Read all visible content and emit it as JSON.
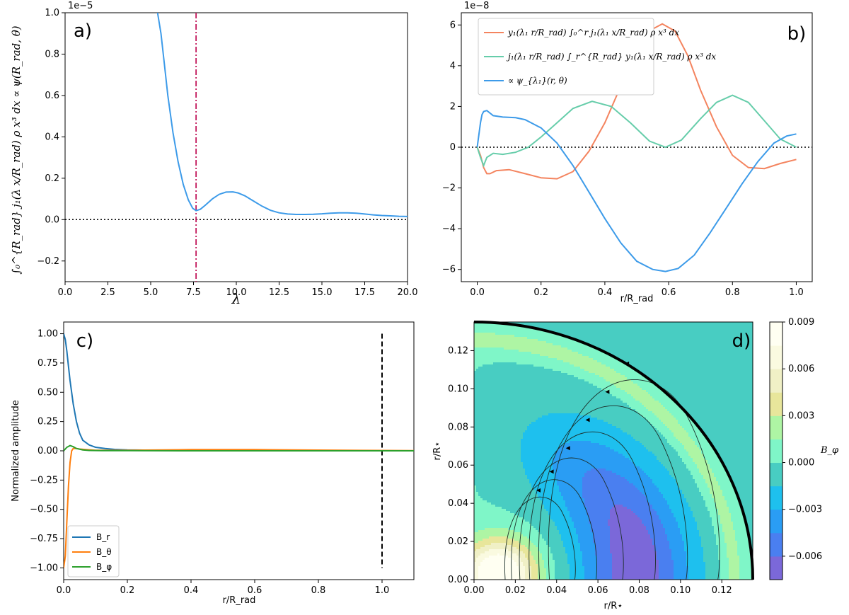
{
  "chart_data": [
    {
      "panel": "a)",
      "type": "line",
      "xlabel": "λ",
      "ylabel": "∫₀^{R_rad} j₁(λ x/R_rad) ρ x³ dx ∝ ψ(R_rad, θ)",
      "y_multiplier": "1e−5",
      "xlim": [
        0,
        20
      ],
      "ylim": [
        -0.3,
        1.0
      ],
      "xticks": [
        "0.0",
        "2.5",
        "5.0",
        "7.5",
        "10.0",
        "12.5",
        "15.0",
        "17.5",
        "20.0"
      ],
      "yticks": [
        "−0.2",
        "0.0",
        "0.2",
        "0.4",
        "0.6",
        "0.8",
        "1.0"
      ],
      "grid": false,
      "reference_lines": [
        {
          "orientation": "horizontal",
          "value": 0,
          "style": "dotted",
          "color": "#000000"
        },
        {
          "orientation": "vertical",
          "value": 7.65,
          "style": "dashdot",
          "color": "#c2185b"
        }
      ],
      "series": [
        {
          "color": "#3d9be9",
          "x": [
            5.4,
            5.6,
            5.8,
            6.0,
            6.3,
            6.6,
            6.9,
            7.2,
            7.45,
            7.65,
            7.9,
            8.2,
            8.6,
            9.0,
            9.4,
            9.8,
            10.1,
            10.5,
            11.0,
            11.5,
            12.0,
            12.5,
            13.0,
            13.5,
            14.0,
            14.5,
            15.0,
            15.5,
            16.0,
            16.5,
            17.0,
            17.5,
            18.0,
            18.5,
            19.0,
            19.5,
            20.0
          ],
          "y": [
            1.0,
            0.9,
            0.75,
            0.6,
            0.42,
            0.28,
            0.17,
            0.095,
            0.055,
            0.043,
            0.05,
            0.07,
            0.1,
            0.122,
            0.133,
            0.134,
            0.129,
            0.115,
            0.09,
            0.065,
            0.045,
            0.033,
            0.027,
            0.025,
            0.025,
            0.026,
            0.028,
            0.031,
            0.033,
            0.033,
            0.031,
            0.027,
            0.023,
            0.02,
            0.018,
            0.016,
            0.015
          ]
        }
      ]
    },
    {
      "panel": "b)",
      "type": "line",
      "xlabel": "r/R_rad",
      "y_multiplier": "1e−8",
      "xlim": [
        -0.05,
        1.05
      ],
      "ylim": [
        -6.6,
        6.6
      ],
      "xticks": [
        "0.0",
        "0.2",
        "0.4",
        "0.6",
        "0.8",
        "1.0"
      ],
      "yticks": [
        "−6",
        "−4",
        "−2",
        "0",
        "2",
        "4",
        "6"
      ],
      "grid": false,
      "legend": "top-left",
      "series": [
        {
          "name": "y₁(λ₁ r/R_rad) ∫₀^r j₁(λ₁ x/R_rad) ρ x³ dx",
          "color": "#f4845f",
          "x": [
            0,
            0.01,
            0.02,
            0.03,
            0.04,
            0.06,
            0.1,
            0.15,
            0.2,
            0.25,
            0.3,
            0.35,
            0.4,
            0.45,
            0.5,
            0.55,
            0.58,
            0.62,
            0.66,
            0.7,
            0.75,
            0.8,
            0.85,
            0.9,
            0.95,
            1.0
          ],
          "y": [
            0,
            -0.4,
            -1.0,
            -1.3,
            -1.3,
            -1.15,
            -1.1,
            -1.3,
            -1.5,
            -1.55,
            -1.2,
            -0.2,
            1.2,
            3.0,
            4.6,
            5.8,
            6.05,
            5.7,
            4.5,
            2.8,
            1.0,
            -0.4,
            -1.0,
            -1.05,
            -0.8,
            -0.6
          ]
        },
        {
          "name": "j₁(λ₁ r/R_rad) ∫_r^{R_rad} y₁(λ₁ x/R_rad) ρ x³ dx",
          "color": "#66cdaa",
          "x": [
            0,
            0.01,
            0.02,
            0.03,
            0.05,
            0.08,
            0.12,
            0.16,
            0.2,
            0.25,
            0.3,
            0.36,
            0.42,
            0.48,
            0.54,
            0.59,
            0.64,
            0.7,
            0.75,
            0.8,
            0.85,
            0.9,
            0.95,
            1.0
          ],
          "y": [
            0,
            -0.5,
            -0.9,
            -0.5,
            -0.3,
            -0.35,
            -0.25,
            0,
            0.5,
            1.2,
            1.9,
            2.25,
            2.0,
            1.2,
            0.3,
            0,
            0.35,
            1.4,
            2.2,
            2.55,
            2.2,
            1.3,
            0.4,
            0
          ]
        },
        {
          "name": "∝ ψ_{λ₁}(r, θ)",
          "color": "#3d9be9",
          "x": [
            0,
            0.005,
            0.01,
            0.015,
            0.02,
            0.03,
            0.05,
            0.08,
            0.12,
            0.15,
            0.2,
            0.25,
            0.3,
            0.35,
            0.4,
            0.45,
            0.5,
            0.55,
            0.59,
            0.63,
            0.68,
            0.73,
            0.78,
            0.83,
            0.88,
            0.93,
            0.97,
            1.0
          ],
          "y": [
            0,
            0.6,
            1.2,
            1.6,
            1.75,
            1.8,
            1.55,
            1.48,
            1.45,
            1.35,
            0.95,
            0.2,
            -0.9,
            -2.2,
            -3.5,
            -4.7,
            -5.6,
            -6.0,
            -6.1,
            -5.95,
            -5.3,
            -4.2,
            -3.0,
            -1.8,
            -0.7,
            0.2,
            0.55,
            0.65
          ]
        }
      ],
      "reference_lines": [
        {
          "orientation": "horizontal",
          "value": 0,
          "style": "dotted",
          "color": "#000000"
        }
      ]
    },
    {
      "panel": "c)",
      "type": "line",
      "xlabel": "r/R_rad",
      "ylabel": "Normalized amplitude",
      "xlim": [
        0,
        1.1
      ],
      "ylim": [
        -1.1,
        1.1
      ],
      "xticks": [
        "0.0",
        "0.2",
        "0.4",
        "0.6",
        "0.8",
        "1.0"
      ],
      "yticks": [
        "−1.00",
        "−0.75",
        "−0.50",
        "−0.25",
        "0.00",
        "0.25",
        "0.50",
        "0.75",
        "1.00"
      ],
      "grid": false,
      "legend": "bottom-left",
      "reference_lines": [
        {
          "orientation": "vertical",
          "value": 1.0,
          "style": "dashed",
          "color": "#000000",
          "y_range": [
            -1.0,
            1.0
          ]
        }
      ],
      "series": [
        {
          "name": "B_r",
          "color": "#1f77b4",
          "x": [
            0,
            0.005,
            0.01,
            0.015,
            0.02,
            0.03,
            0.04,
            0.05,
            0.06,
            0.08,
            0.1,
            0.13,
            0.16,
            0.2,
            0.3,
            0.5,
            0.8,
            1.1
          ],
          "y": [
            1.0,
            0.95,
            0.85,
            0.72,
            0.6,
            0.4,
            0.25,
            0.15,
            0.09,
            0.05,
            0.03,
            0.02,
            0.012,
            0.008,
            0.004,
            0.002,
            0.001,
            0.0
          ]
        },
        {
          "name": "B_θ",
          "color": "#ff7f0e",
          "x": [
            0,
            0.005,
            0.01,
            0.015,
            0.02,
            0.025,
            0.03,
            0.04,
            0.05,
            0.07,
            0.1,
            0.2,
            0.4,
            0.6,
            0.8,
            1.0,
            1.1
          ],
          "y": [
            -1.0,
            -0.9,
            -0.6,
            -0.3,
            -0.1,
            0.0,
            0.02,
            0.02,
            0.015,
            0.01,
            0.005,
            0.005,
            0.01,
            0.01,
            0.006,
            0.003,
            0.002
          ]
        },
        {
          "name": "B_φ",
          "color": "#2ca02c",
          "x": [
            0,
            0.01,
            0.02,
            0.03,
            0.04,
            0.06,
            0.08,
            0.12,
            0.2,
            0.4,
            0.7,
            1.1
          ],
          "y": [
            0.0,
            0.03,
            0.045,
            0.035,
            0.02,
            0.008,
            0.003,
            0.002,
            0.001,
            0.0,
            0.0,
            0.0
          ]
        }
      ]
    },
    {
      "panel": "d)",
      "type": "heatmap",
      "xlabel": "r/R⋆",
      "ylabel": "r/R⋆",
      "xlim": [
        0,
        0.135
      ],
      "ylim": [
        0,
        0.135
      ],
      "xticks": [
        "0.00",
        "0.02",
        "0.04",
        "0.06",
        "0.08",
        "0.10",
        "0.12"
      ],
      "yticks": [
        "0.00",
        "0.02",
        "0.04",
        "0.06",
        "0.08",
        "0.10",
        "0.12"
      ],
      "colorbar_label": "B_φ",
      "colorbar_ticks": [
        "0.009",
        "0.006",
        "0.003",
        "0.000",
        "−0.003",
        "−0.006"
      ],
      "levels": [
        -0.0075,
        -0.006,
        -0.0045,
        -0.003,
        -0.0015,
        0.0,
        0.0015,
        0.003,
        0.0045,
        0.006,
        0.0075,
        0.009
      ],
      "level_colors": [
        "#7b68d9",
        "#4a7ff0",
        "#2a9df4",
        "#1ec0ee",
        "#48cdc2",
        "#7ff6c8",
        "#aef5a4",
        "#e8e69b",
        "#f0f0c6",
        "#fafae0",
        "#fffff2"
      ],
      "grid": false
    }
  ]
}
